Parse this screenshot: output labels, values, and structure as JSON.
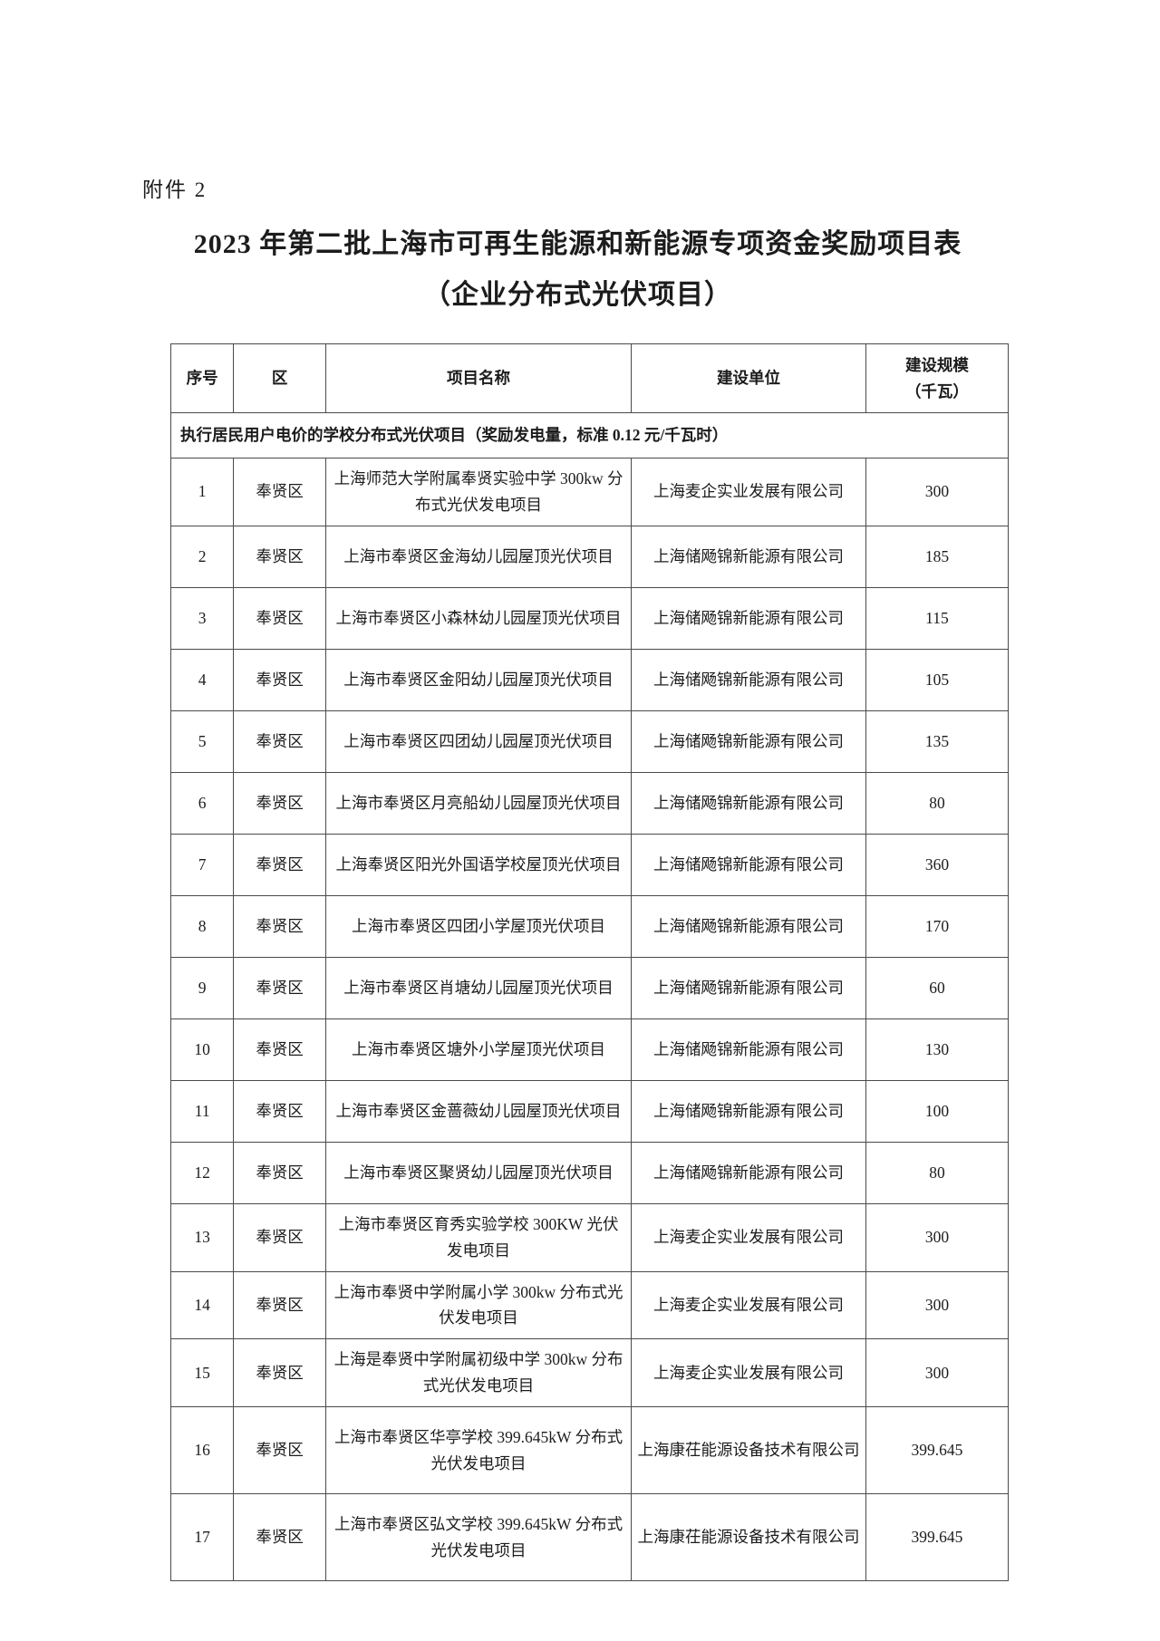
{
  "document": {
    "attachment_label": "附件 2",
    "title": "2023 年第二批上海市可再生能源和新能源专项资金奖励项目表（企业分布式光伏项目）"
  },
  "table": {
    "headers": {
      "no": "序号",
      "district": "区",
      "project": "项目名称",
      "company": "建设单位",
      "capacity": "建设规模\n（千瓦）"
    },
    "section_header": "执行居民用户电价的学校分布式光伏项目（奖励发电量，标准 0.12 元/千瓦时）",
    "rows": [
      {
        "no": "1",
        "district": "奉贤区",
        "project": "上海师范大学附属奉贤实验中学 300kw 分布式光伏发电项目",
        "company": "上海麦企实业发展有限公司",
        "capacity": "300"
      },
      {
        "no": "2",
        "district": "奉贤区",
        "project": "上海市奉贤区金海幼儿园屋顶光伏项目",
        "company": "上海储飏锦新能源有限公司",
        "capacity": "185"
      },
      {
        "no": "3",
        "district": "奉贤区",
        "project": "上海市奉贤区小森林幼儿园屋顶光伏项目",
        "company": "上海储飏锦新能源有限公司",
        "capacity": "115"
      },
      {
        "no": "4",
        "district": "奉贤区",
        "project": "上海市奉贤区金阳幼儿园屋顶光伏项目",
        "company": "上海储飏锦新能源有限公司",
        "capacity": "105"
      },
      {
        "no": "5",
        "district": "奉贤区",
        "project": "上海市奉贤区四团幼儿园屋顶光伏项目",
        "company": "上海储飏锦新能源有限公司",
        "capacity": "135"
      },
      {
        "no": "6",
        "district": "奉贤区",
        "project": "上海市奉贤区月亮船幼儿园屋顶光伏项目",
        "company": "上海储飏锦新能源有限公司",
        "capacity": "80"
      },
      {
        "no": "7",
        "district": "奉贤区",
        "project": "上海奉贤区阳光外国语学校屋顶光伏项目",
        "company": "上海储飏锦新能源有限公司",
        "capacity": "360"
      },
      {
        "no": "8",
        "district": "奉贤区",
        "project": "上海市奉贤区四团小学屋顶光伏项目",
        "company": "上海储飏锦新能源有限公司",
        "capacity": "170"
      },
      {
        "no": "9",
        "district": "奉贤区",
        "project": "上海市奉贤区肖塘幼儿园屋顶光伏项目",
        "company": "上海储飏锦新能源有限公司",
        "capacity": "60"
      },
      {
        "no": "10",
        "district": "奉贤区",
        "project": "上海市奉贤区塘外小学屋顶光伏项目",
        "company": "上海储飏锦新能源有限公司",
        "capacity": "130"
      },
      {
        "no": "11",
        "district": "奉贤区",
        "project": "上海市奉贤区金蔷薇幼儿园屋顶光伏项目",
        "company": "上海储飏锦新能源有限公司",
        "capacity": "100"
      },
      {
        "no": "12",
        "district": "奉贤区",
        "project": "上海市奉贤区聚贤幼儿园屋顶光伏项目",
        "company": "上海储飏锦新能源有限公司",
        "capacity": "80"
      },
      {
        "no": "13",
        "district": "奉贤区",
        "project": "上海市奉贤区育秀实验学校 300KW 光伏发电项目",
        "company": "上海麦企实业发展有限公司",
        "capacity": "300"
      },
      {
        "no": "14",
        "district": "奉贤区",
        "project": "上海市奉贤中学附属小学 300kw 分布式光伏发电项目",
        "company": "上海麦企实业发展有限公司",
        "capacity": "300"
      },
      {
        "no": "15",
        "district": "奉贤区",
        "project": "上海是奉贤中学附属初级中学 300kw 分布式光伏发电项目",
        "company": "上海麦企实业发展有限公司",
        "capacity": "300"
      },
      {
        "no": "16",
        "district": "奉贤区",
        "project": "上海市奉贤区华亭学校 399.645kW 分布式光伏发电项目",
        "company": "上海康茌能源设备技术有限公司",
        "capacity": "399.645",
        "tall": true
      },
      {
        "no": "17",
        "district": "奉贤区",
        "project": "上海市奉贤区弘文学校 399.645kW 分布式光伏发电项目",
        "company": "上海康茌能源设备技术有限公司",
        "capacity": "399.645",
        "tall": true
      }
    ]
  }
}
